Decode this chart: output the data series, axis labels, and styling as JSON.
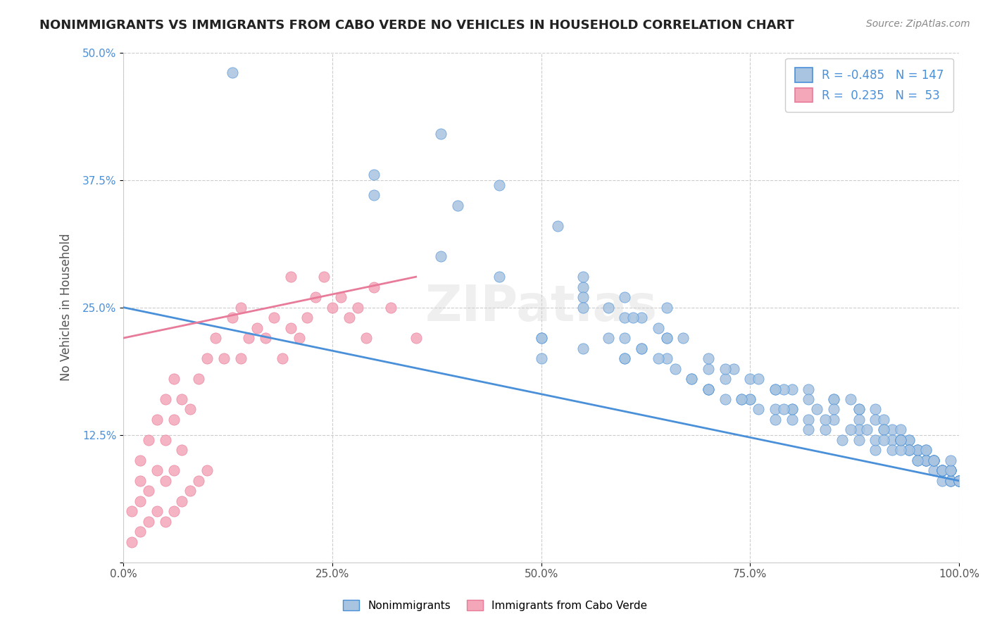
{
  "title": "NONIMMIGRANTS VS IMMIGRANTS FROM CABO VERDE NO VEHICLES IN HOUSEHOLD CORRELATION CHART",
  "source": "Source: ZipAtlas.com",
  "xlabel": "",
  "ylabel": "No Vehicles in Household",
  "xlim": [
    0,
    100
  ],
  "ylim": [
    0,
    50
  ],
  "x_ticks": [
    0,
    25,
    50,
    75,
    100
  ],
  "x_tick_labels": [
    "0.0%",
    "25.0%",
    "50.0%",
    "75.0%",
    "100.0%"
  ],
  "y_ticks": [
    0,
    12.5,
    25.0,
    37.5,
    50.0
  ],
  "y_tick_labels": [
    "",
    "12.5%",
    "25.0%",
    "37.5%",
    "50.0%"
  ],
  "blue_R": -0.485,
  "blue_N": 147,
  "pink_R": 0.235,
  "pink_N": 53,
  "blue_color": "#a8c4e0",
  "pink_color": "#f4a7b9",
  "blue_line_color": "#4a90d9",
  "pink_line_color": "#e87a9a",
  "legend_label_blue": "Nonimmigrants",
  "legend_label_pink": "Immigrants from Cabo Verde",
  "watermark": "ZIPatlas",
  "background_color": "#ffffff",
  "grid_color": "#cccccc",
  "blue_scatter_x": [
    13,
    38,
    45,
    52,
    30,
    38,
    55,
    60,
    65,
    62,
    58,
    50,
    55,
    60,
    65,
    70,
    72,
    75,
    78,
    80,
    82,
    85,
    85,
    87,
    88,
    88,
    90,
    90,
    91,
    91,
    92,
    92,
    93,
    93,
    93,
    94,
    94,
    94,
    94,
    95,
    95,
    95,
    96,
    96,
    96,
    96,
    97,
    97,
    97,
    97,
    98,
    98,
    98,
    98,
    98,
    99,
    99,
    99,
    99,
    99,
    100,
    100,
    100,
    40,
    30,
    55,
    60,
    65,
    50,
    70,
    75,
    78,
    80,
    82,
    60,
    62,
    64,
    66,
    68,
    70,
    72,
    74,
    76,
    78,
    80,
    82,
    84,
    86,
    88,
    90,
    55,
    58,
    61,
    64,
    67,
    70,
    73,
    76,
    79,
    82,
    85,
    88,
    91,
    93,
    95,
    97,
    99,
    100,
    50,
    60,
    70,
    75,
    80,
    85,
    88,
    90,
    92,
    94,
    96,
    97,
    98,
    99,
    100,
    45,
    55,
    65,
    72,
    78,
    83,
    87,
    91,
    93,
    95,
    97,
    98,
    99,
    100,
    62,
    68,
    74,
    79,
    84,
    89,
    93,
    96,
    99
  ],
  "blue_scatter_y": [
    48,
    42,
    37,
    33,
    38,
    30,
    27,
    26,
    25,
    24,
    22,
    22,
    21,
    20,
    20,
    19,
    18,
    18,
    17,
    17,
    17,
    16,
    16,
    16,
    15,
    15,
    15,
    14,
    14,
    13,
    13,
    12,
    12,
    12,
    13,
    12,
    12,
    11,
    11,
    11,
    11,
    10,
    10,
    10,
    11,
    10,
    10,
    10,
    10,
    9,
    9,
    9,
    9,
    8,
    9,
    9,
    9,
    8,
    8,
    8,
    8,
    8,
    8,
    35,
    36,
    28,
    24,
    22,
    20,
    17,
    16,
    15,
    15,
    14,
    22,
    21,
    20,
    19,
    18,
    17,
    16,
    16,
    15,
    14,
    14,
    13,
    13,
    12,
    12,
    11,
    26,
    25,
    24,
    23,
    22,
    20,
    19,
    18,
    17,
    16,
    15,
    14,
    13,
    12,
    11,
    10,
    9,
    8,
    22,
    20,
    17,
    16,
    15,
    14,
    13,
    12,
    11,
    11,
    10,
    10,
    9,
    9,
    8,
    28,
    25,
    22,
    19,
    17,
    15,
    13,
    12,
    11,
    10,
    10,
    9,
    9,
    8,
    21,
    18,
    16,
    15,
    14,
    13,
    12,
    11,
    10
  ],
  "pink_scatter_x": [
    1,
    1,
    2,
    2,
    2,
    2,
    3,
    3,
    3,
    4,
    4,
    4,
    5,
    5,
    5,
    5,
    6,
    6,
    6,
    6,
    7,
    7,
    7,
    8,
    8,
    9,
    9,
    10,
    10,
    11,
    12,
    13,
    14,
    14,
    15,
    16,
    17,
    18,
    19,
    20,
    20,
    21,
    22,
    23,
    24,
    25,
    26,
    27,
    28,
    29,
    30,
    32,
    35
  ],
  "pink_scatter_y": [
    2,
    5,
    3,
    6,
    8,
    10,
    4,
    7,
    12,
    5,
    9,
    14,
    4,
    8,
    12,
    16,
    5,
    9,
    14,
    18,
    6,
    11,
    16,
    7,
    15,
    8,
    18,
    9,
    20,
    22,
    20,
    24,
    25,
    20,
    22,
    23,
    22,
    24,
    20,
    23,
    28,
    22,
    24,
    26,
    28,
    25,
    26,
    24,
    25,
    22,
    27,
    25,
    22
  ],
  "blue_line_x": [
    0,
    100
  ],
  "blue_line_y": [
    25,
    8
  ],
  "pink_line_x": [
    0,
    35
  ],
  "pink_line_y": [
    22,
    28
  ]
}
